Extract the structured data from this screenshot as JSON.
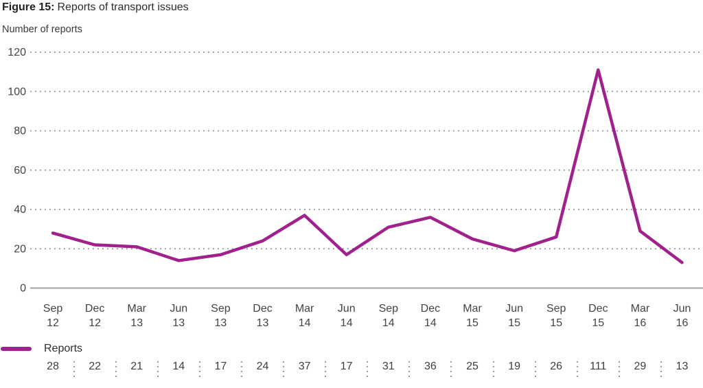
{
  "header": {
    "figure_label": "Figure 15:",
    "title": "Reports of transport issues",
    "axis_title": "Number of reports"
  },
  "legend": {
    "label": "Reports",
    "line_color": "#a0218c"
  },
  "colors": {
    "grid": "#8a8a8a",
    "axis_line": "#a0a0a0",
    "tick_text": "#434343",
    "title_text": "#231f20"
  },
  "chart_data": {
    "type": "line",
    "title": "Figure 15: Reports of transport issues",
    "ylabel": "Number of reports",
    "xlabel": "",
    "ylim": [
      0,
      120
    ],
    "yticks": [
      0,
      20,
      40,
      60,
      80,
      100,
      120
    ],
    "grid": "horizontal dotted",
    "legend_position": "bottom-left",
    "categories": [
      "Sep 12",
      "Dec 12",
      "Mar 13",
      "Jun 13",
      "Sep 13",
      "Dec 13",
      "Mar 14",
      "Jun 14",
      "Sep 14",
      "Dec 14",
      "Mar 15",
      "Jun 15",
      "Sep 15",
      "Dec 15",
      "Mar 16",
      "Jun 16"
    ],
    "series": [
      {
        "name": "Reports",
        "color": "#a0218c",
        "values": [
          28,
          22,
          21,
          14,
          17,
          24,
          37,
          17,
          31,
          36,
          25,
          19,
          26,
          111,
          29,
          13
        ]
      }
    ]
  }
}
